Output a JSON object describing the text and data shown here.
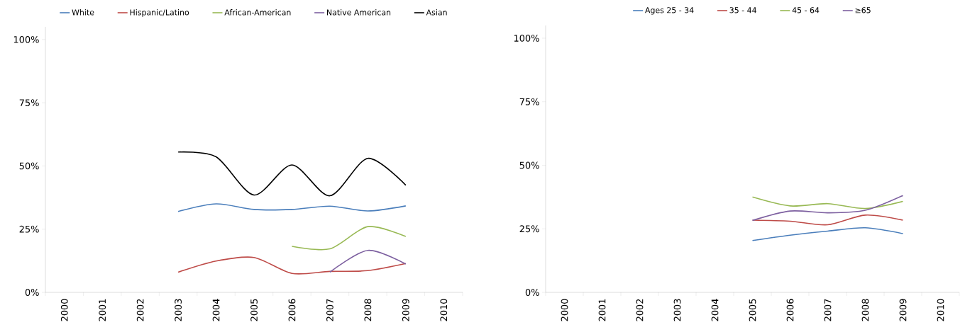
{
  "chart_data": [
    {
      "type": "line",
      "categories": [
        "2000",
        "2001",
        "2002",
        "2003",
        "2004",
        "2005",
        "2006",
        "2007",
        "2008",
        "2009",
        "2010"
      ],
      "series": [
        {
          "name": "White",
          "color": "#4a7ebb",
          "values": [
            null,
            null,
            null,
            32,
            35,
            32.8,
            32.8,
            34.1,
            32.2,
            34.2,
            null
          ]
        },
        {
          "name": "Hispanic/Latino",
          "color": "#be4b48",
          "values": [
            null,
            null,
            null,
            8,
            12.4,
            13.8,
            7.5,
            8.3,
            8.6,
            11.4,
            null
          ]
        },
        {
          "name": "African-American",
          "color": "#98b954",
          "values": [
            null,
            null,
            null,
            null,
            null,
            null,
            18.2,
            17.2,
            26,
            22.1,
            null
          ]
        },
        {
          "name": "Native American",
          "color": "#7d60a0",
          "values": [
            null,
            null,
            null,
            null,
            null,
            null,
            null,
            8,
            16.6,
            11.2,
            null
          ]
        },
        {
          "name": "Asian",
          "color": "#000000",
          "values": [
            null,
            null,
            null,
            55.5,
            53.6,
            38.5,
            50.4,
            38.2,
            53,
            42.4,
            null
          ]
        }
      ],
      "ylim": [
        0,
        105
      ],
      "yticks": [
        {
          "value": 0,
          "label": "0%"
        },
        {
          "value": 25,
          "label": "25%"
        },
        {
          "value": 50,
          "label": "50%"
        },
        {
          "value": 75,
          "label": "75%"
        },
        {
          "value": 100,
          "label": "100%"
        }
      ],
      "grid": false,
      "legend": "top",
      "marker": "none",
      "line_style": "solid"
    },
    {
      "type": "line",
      "categories": [
        "2000",
        "2001",
        "2002",
        "2003",
        "2004",
        "2005",
        "2006",
        "2007",
        "2008",
        "2009",
        "2010"
      ],
      "series": [
        {
          "name": "Ages 25 - 34",
          "color": "#4a7ebb",
          "values": [
            null,
            null,
            null,
            null,
            null,
            20.4,
            22.5,
            24.1,
            25.4,
            23.1,
            null
          ]
        },
        {
          "name": "35 - 44",
          "color": "#be4b48",
          "values": [
            null,
            null,
            null,
            null,
            null,
            28.4,
            28,
            26.6,
            30.4,
            28.4,
            null
          ]
        },
        {
          "name": "45 - 64",
          "color": "#98b954",
          "values": [
            null,
            null,
            null,
            null,
            null,
            37.5,
            34,
            34.9,
            33,
            35.8,
            null
          ]
        },
        {
          "name": "≥65",
          "color": "#7d60a0",
          "values": [
            null,
            null,
            null,
            null,
            null,
            28.3,
            32,
            31.3,
            32.3,
            38.1,
            null
          ]
        }
      ],
      "ylim": [
        0,
        105
      ],
      "yticks": [
        {
          "value": 0,
          "label": "0%"
        },
        {
          "value": 25,
          "label": "25%"
        },
        {
          "value": 50,
          "label": "50%"
        },
        {
          "value": 75,
          "label": "75%"
        },
        {
          "value": 100,
          "label": "100%"
        }
      ],
      "grid": false,
      "legend": "top",
      "marker": "none",
      "line_style": "solid"
    }
  ]
}
